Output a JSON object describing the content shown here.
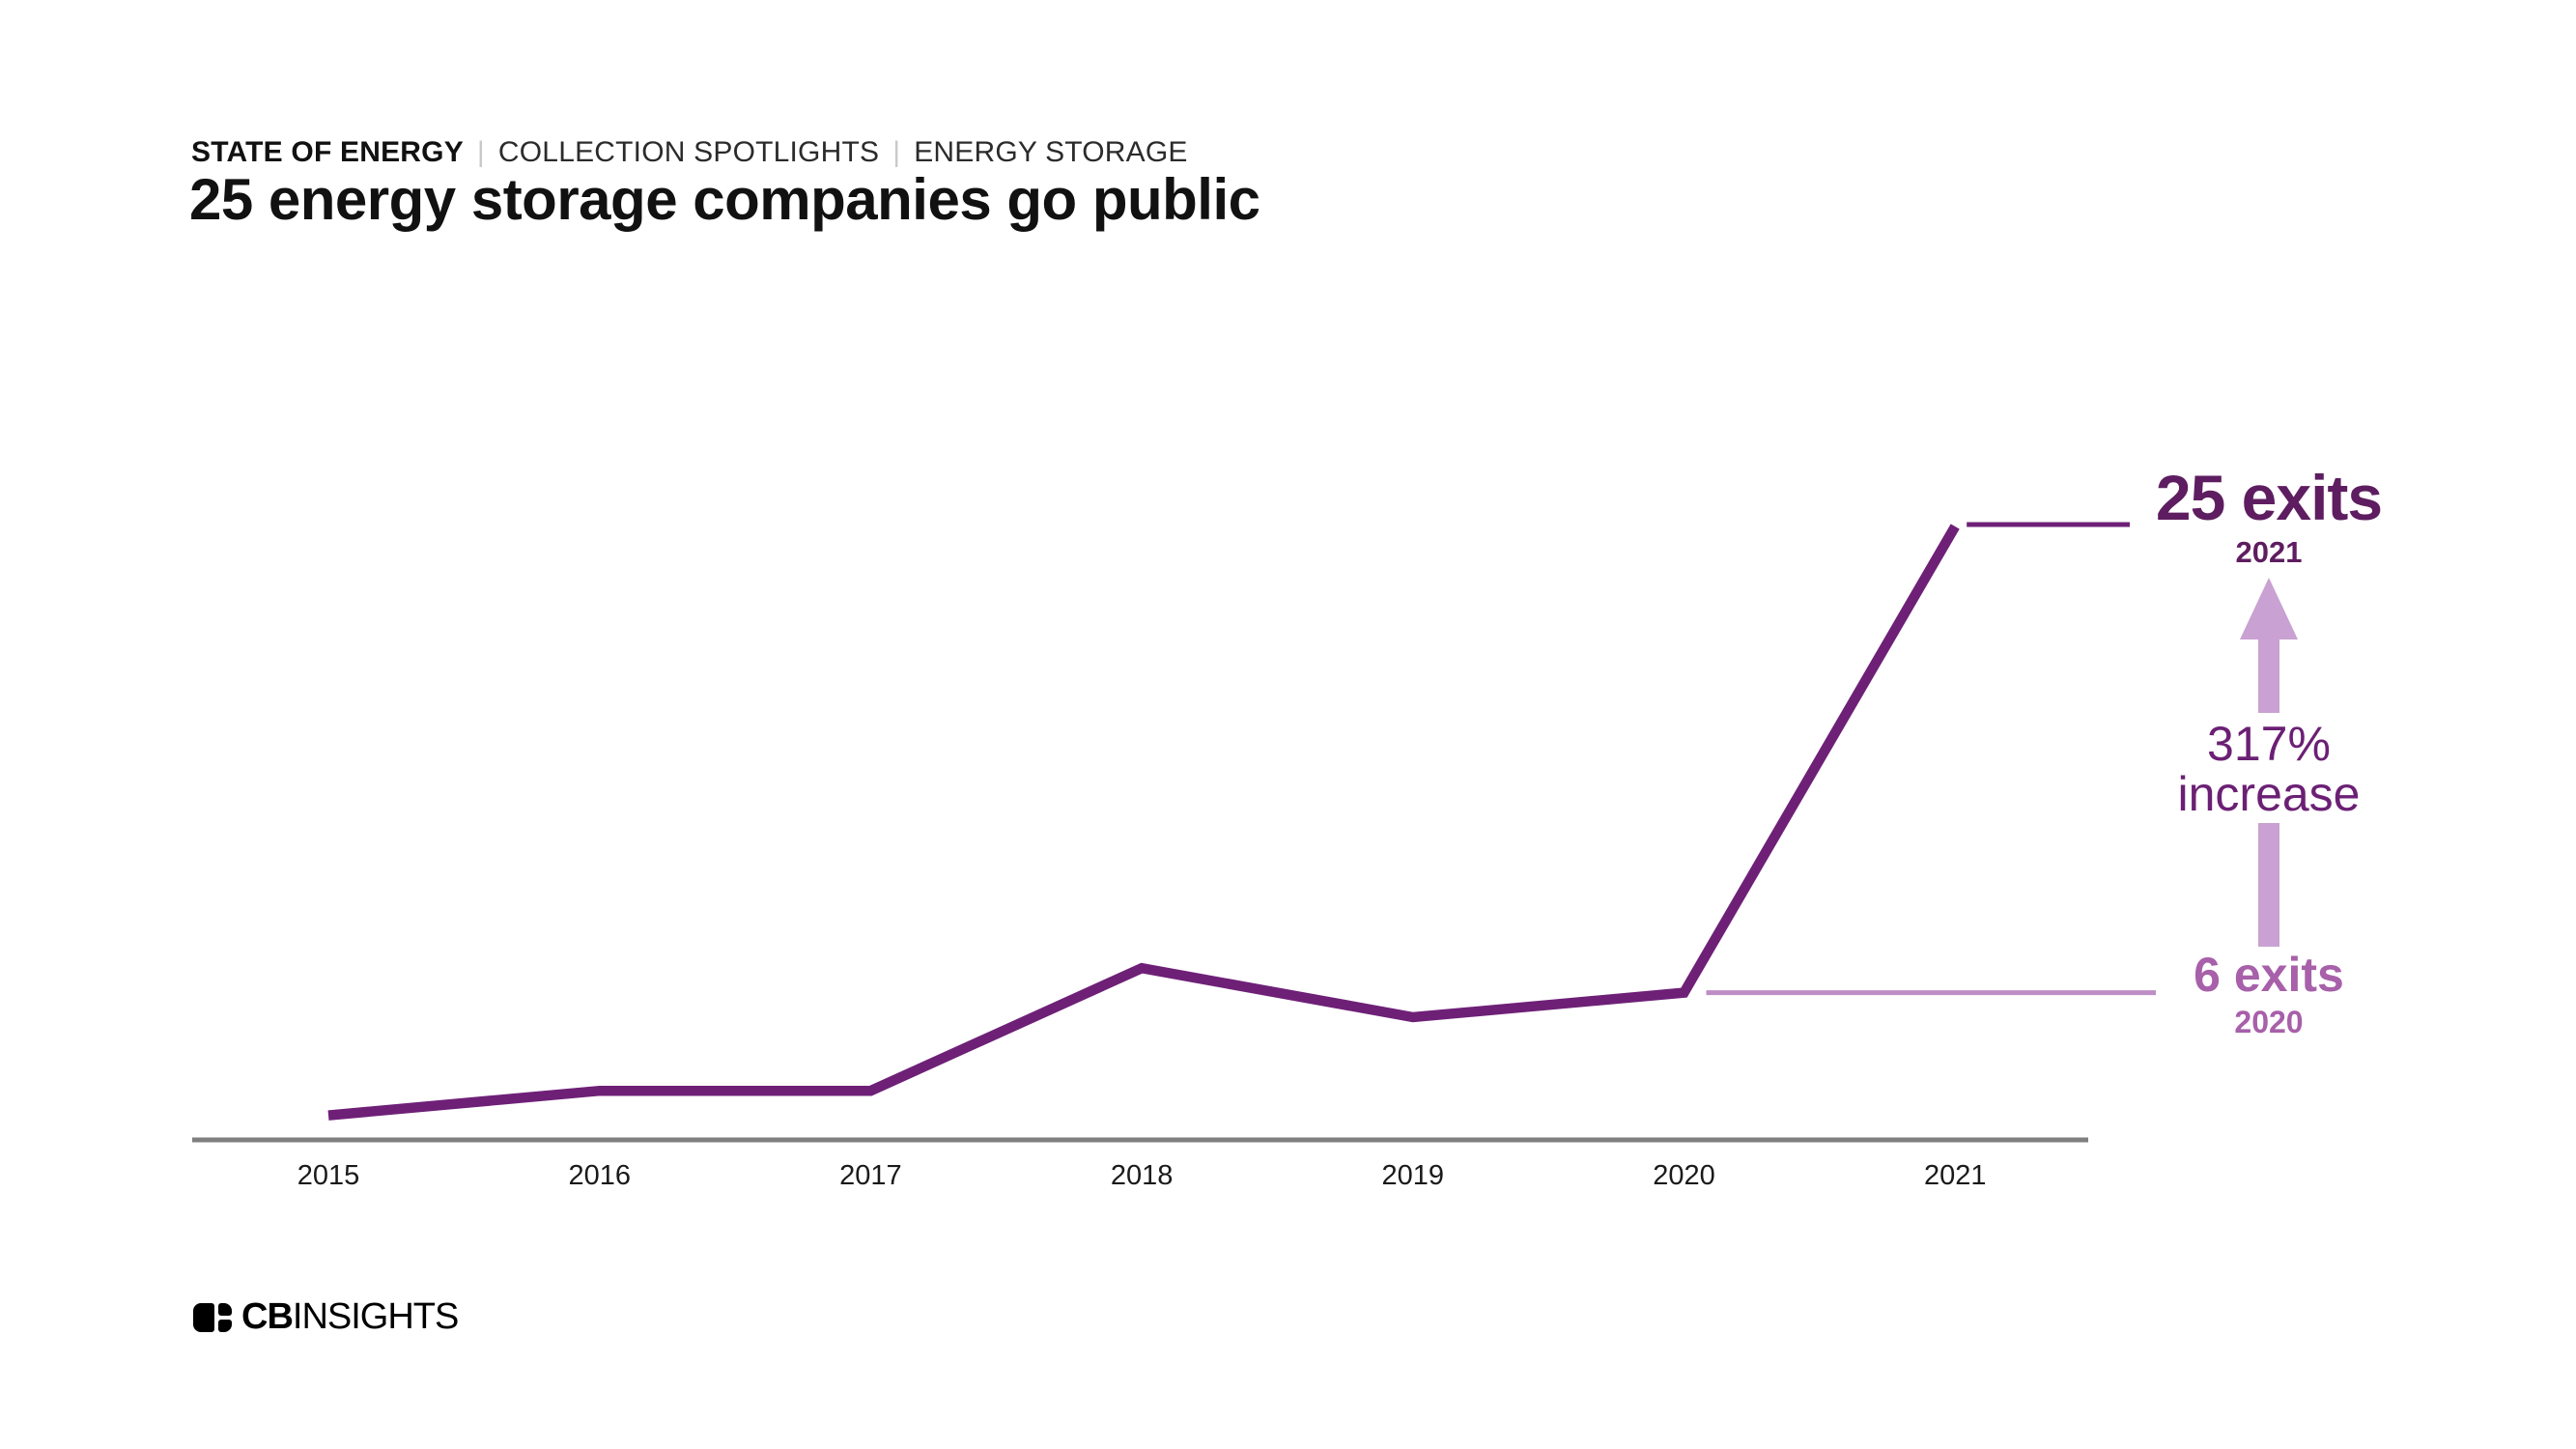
{
  "header": {
    "kicker": {
      "section": "STATE OF ENERGY",
      "separator": "|",
      "collection": "COLLECTION SPOTLIGHTS",
      "topic": "ENERGY STORAGE"
    },
    "title": "25 energy storage companies go public"
  },
  "chart_data": {
    "type": "line",
    "title": "25 energy storage companies go public",
    "categories": [
      "2015",
      "2016",
      "2017",
      "2018",
      "2019",
      "2020",
      "2021"
    ],
    "values": [
      1,
      2,
      2,
      7,
      5,
      6,
      25
    ],
    "xlabel": "",
    "ylabel": "",
    "ylim": [
      0,
      26
    ],
    "grid": false,
    "legend": false,
    "y_axis_hidden": true,
    "annotations": [
      {
        "target_year": "2021",
        "text": "25 exits"
      },
      {
        "target_year": "2020",
        "text": "6 exits"
      },
      {
        "between": [
          "2020",
          "2021"
        ],
        "text": "317% increase"
      }
    ]
  },
  "annotations": {
    "peak": {
      "value": "25 exits",
      "year": "2021"
    },
    "increase": {
      "line1": "317%",
      "line2": "increase"
    },
    "base": {
      "value": "6 exits",
      "year": "2020"
    }
  },
  "footer": {
    "brand_bold": "CB",
    "brand_regular": "INSIGHTS"
  },
  "colors": {
    "line": "#6E2077",
    "dark_label": "#5E1D60",
    "increase_label": "#6B2074",
    "mid_label": "#A760A9",
    "arrow": "#C9A1D2",
    "base_line": "#BE8DC6",
    "axis": "#7F7F7F",
    "text": "#1A1A1A",
    "separator": "#C9C9C9"
  }
}
